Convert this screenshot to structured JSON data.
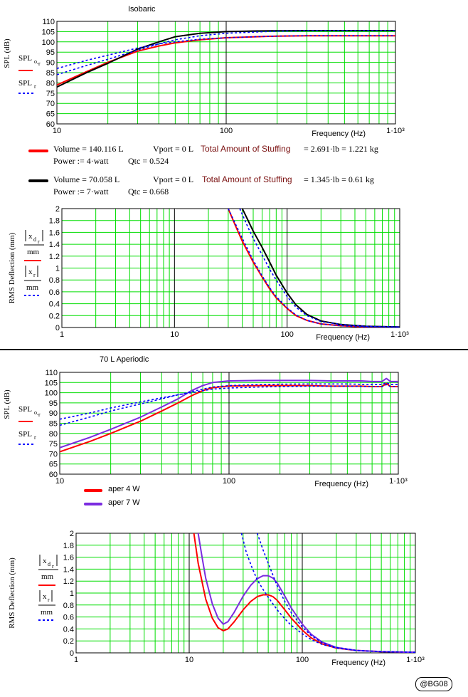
{
  "credit": "@BG08",
  "legend_isobaric": [
    {
      "color": "#ff0000",
      "line1": "Volume = 140.116 L",
      "vport": "Vport = 0 L",
      "stuff_label": "Total Amount of Stuffing",
      "stuff_value": "= 2.691·lb = 1.221 kg",
      "line2": "Power := 4·watt",
      "qtc": "Qtc = 0.524"
    },
    {
      "color": "#000000",
      "line1": "Volume = 70.058 L",
      "vport": "Vport = 0 L",
      "stuff_label": "Total Amount of Stuffing",
      "stuff_value": "= 1.345·lb = 0.61 kg",
      "line2": "Power := 7·watt",
      "qtc": "Qtc = 0.668"
    }
  ],
  "legend_aperiodic": [
    {
      "color": "#ff0000",
      "label": "aper 4 W"
    },
    {
      "color": "#7b2be0",
      "label": "aper 7 W"
    }
  ],
  "chart_data": [
    {
      "type": "line",
      "title": "Isobaric",
      "xlabel": "Frequency (Hz)",
      "ylabel": "SPL (dB)",
      "xscale": "log",
      "xlim": [
        10,
        1000
      ],
      "ylim": [
        60,
        110
      ],
      "yticks": [
        60,
        65,
        70,
        75,
        80,
        85,
        90,
        95,
        100,
        105,
        110
      ],
      "xticks": [
        10,
        100,
        1000
      ],
      "xtick_labels": [
        "10",
        "100",
        "1·10³"
      ],
      "grid": true,
      "legend": {
        "solid": "SPL_o_r",
        "dotted": "SPL_r"
      },
      "series": [
        {
          "color": "#ff0000",
          "style": "solid",
          "x": [
            10,
            15,
            20,
            30,
            40,
            50,
            70,
            100,
            150,
            200,
            300,
            500,
            700,
            1000
          ],
          "y": [
            79,
            85.5,
            90,
            95.5,
            98,
            99.5,
            101,
            102,
            102.5,
            102.8,
            103,
            103,
            103,
            103
          ]
        },
        {
          "color": "#000000",
          "style": "solid",
          "x": [
            10,
            15,
            20,
            30,
            40,
            50,
            70,
            100,
            150,
            200,
            300,
            500,
            700,
            1000
          ],
          "y": [
            78,
            85,
            89.5,
            96.5,
            100,
            102.5,
            104.2,
            105,
            105.3,
            105.4,
            105.5,
            105.5,
            105.5,
            105.5
          ]
        },
        {
          "color": "#0000ff",
          "style": "dotted",
          "x": [
            10,
            15,
            20,
            30,
            40,
            50,
            70,
            100,
            150,
            200,
            300,
            500,
            700,
            1000
          ],
          "y": [
            87,
            91,
            93.5,
            97,
            99,
            100,
            101.3,
            102,
            102.5,
            102.8,
            103,
            103,
            103,
            103
          ]
        },
        {
          "color": "#0000ff",
          "style": "dotted",
          "x": [
            10,
            15,
            20,
            30,
            40,
            50,
            70,
            100,
            150,
            200,
            300,
            500,
            700,
            1000
          ],
          "y": [
            84,
            88.5,
            91.5,
            96,
            99,
            101,
            103,
            104.2,
            104.8,
            105.2,
            105.4,
            105.5,
            105.5,
            105.5
          ]
        }
      ]
    },
    {
      "type": "line",
      "title": "",
      "xlabel": "Frequency (Hz)",
      "ylabel": "RMS Deflection (mm)",
      "xscale": "log",
      "xlim": [
        1,
        1000
      ],
      "ylim": [
        0,
        2
      ],
      "yticks": [
        0,
        0.2,
        0.4,
        0.6,
        0.8,
        1,
        1.2,
        1.4,
        1.6,
        1.8,
        2
      ],
      "xticks": [
        1,
        10,
        100,
        1000
      ],
      "xtick_labels": [
        "1",
        "10",
        "100",
        "1·10³"
      ],
      "grid": true,
      "legend": {
        "solid": "|x_d_r| / mm",
        "dotted": "|x_r| / mm"
      },
      "series": [
        {
          "color": "#ff0000",
          "style": "solid",
          "x": [
            30,
            35,
            40,
            50,
            60,
            70,
            80,
            100,
            120,
            150,
            200,
            300,
            500,
            1000
          ],
          "y": [
            2,
            1.7,
            1.45,
            1.1,
            0.85,
            0.65,
            0.5,
            0.32,
            0.2,
            0.12,
            0.06,
            0.03,
            0.01,
            0.005
          ]
        },
        {
          "color": "#000000",
          "style": "solid",
          "x": [
            40,
            45,
            50,
            60,
            70,
            80,
            100,
            120,
            150,
            200,
            300,
            500,
            1000
          ],
          "y": [
            2,
            1.8,
            1.62,
            1.35,
            1.1,
            0.88,
            0.58,
            0.38,
            0.22,
            0.11,
            0.05,
            0.02,
            0.01
          ]
        },
        {
          "color": "#0000ff",
          "style": "dotted",
          "x": [
            30,
            35,
            40,
            50,
            60,
            70,
            80,
            100,
            120,
            150,
            200,
            300,
            500,
            1000
          ],
          "y": [
            2,
            1.73,
            1.5,
            1.13,
            0.87,
            0.67,
            0.52,
            0.33,
            0.21,
            0.12,
            0.06,
            0.03,
            0.01,
            0.005
          ]
        },
        {
          "color": "#0000ff",
          "style": "dotted",
          "x": [
            38,
            45,
            50,
            60,
            70,
            80,
            100,
            120,
            150,
            200,
            300,
            500,
            1000
          ],
          "y": [
            2,
            1.68,
            1.5,
            1.22,
            0.98,
            0.8,
            0.52,
            0.34,
            0.2,
            0.1,
            0.05,
            0.02,
            0.01
          ]
        }
      ]
    },
    {
      "type": "line",
      "title": "70 L   Aperiodic",
      "xlabel": "Frequency (Hz)",
      "ylabel": "SPL (dB)",
      "xscale": "log",
      "xlim": [
        10,
        1000
      ],
      "ylim": [
        60,
        110
      ],
      "yticks": [
        60,
        65,
        70,
        75,
        80,
        85,
        90,
        95,
        100,
        105,
        110
      ],
      "xticks": [
        10,
        100,
        1000
      ],
      "xtick_labels": [
        "10",
        "100",
        "1·10³"
      ],
      "grid": true,
      "legend": {
        "solid": "SPL_o_r",
        "dotted": "SPL_r"
      },
      "series": [
        {
          "color": "#ff0000",
          "style": "solid",
          "x": [
            10,
            15,
            20,
            30,
            40,
            50,
            60,
            70,
            80,
            100,
            150,
            200,
            300,
            400,
            500,
            600,
            700,
            800,
            850,
            900,
            1000
          ],
          "y": [
            71,
            76,
            80,
            86,
            91,
            95,
            98.5,
            101,
            102.5,
            103.3,
            103.5,
            103.5,
            103.5,
            103.2,
            103.2,
            103.2,
            103,
            103,
            104.5,
            103,
            103
          ]
        },
        {
          "color": "#7b2be0",
          "style": "solid",
          "x": [
            10,
            15,
            20,
            30,
            40,
            50,
            60,
            70,
            80,
            100,
            150,
            200,
            300,
            400,
            500,
            600,
            700,
            800,
            850,
            900,
            1000
          ],
          "y": [
            73,
            78,
            82,
            88,
            93,
            97,
            101,
            103.5,
            105,
            105.8,
            106,
            106,
            106,
            105.8,
            105.8,
            105.8,
            105.5,
            105.5,
            107,
            105.5,
            105.5
          ]
        },
        {
          "color": "#0000ff",
          "style": "dotted",
          "x": [
            10,
            15,
            20,
            30,
            40,
            50,
            60,
            70,
            80,
            100,
            150,
            200,
            300,
            500,
            700,
            800,
            850,
            900,
            1000
          ],
          "y": [
            87,
            90,
            92.5,
            95.5,
            97.5,
            99,
            100,
            101,
            101.8,
            102.3,
            102.8,
            103,
            103.2,
            103.2,
            103,
            103,
            104,
            103,
            103
          ]
        },
        {
          "color": "#0000ff",
          "style": "dotted",
          "x": [
            10,
            15,
            20,
            30,
            40,
            50,
            60,
            70,
            80,
            100,
            150,
            200,
            300,
            500,
            700,
            800,
            850,
            900,
            1000
          ],
          "y": [
            84,
            88,
            91,
            94.5,
            97,
            99,
            100.5,
            101.8,
            102.8,
            103.5,
            104,
            104.2,
            104.3,
            104.3,
            104,
            104,
            105,
            104,
            104
          ]
        }
      ]
    },
    {
      "type": "line",
      "title": "",
      "xlabel": "Frequency (Hz)",
      "ylabel": "RMS Deflection (mm)",
      "xscale": "log",
      "xlim": [
        1,
        1000
      ],
      "ylim": [
        0,
        2
      ],
      "yticks": [
        0,
        0.2,
        0.4,
        0.6,
        0.8,
        1,
        1.2,
        1.4,
        1.6,
        1.8,
        2
      ],
      "xticks": [
        1,
        10,
        100,
        1000
      ],
      "xtick_labels": [
        "1",
        "10",
        "100",
        "1·10³"
      ],
      "grid": true,
      "legend": {
        "solid": "|x_d_r| / mm",
        "dotted": "|x_r| / mm"
      },
      "series": [
        {
          "color": "#ff0000",
          "style": "solid",
          "x": [
            11,
            12,
            14,
            16,
            18,
            20,
            22,
            25,
            30,
            35,
            40,
            45,
            50,
            55,
            60,
            70,
            80,
            100,
            120,
            150,
            200,
            300,
            500,
            1000
          ],
          "y": [
            2,
            1.5,
            0.9,
            0.58,
            0.42,
            0.37,
            0.4,
            0.52,
            0.72,
            0.86,
            0.94,
            0.97,
            0.97,
            0.94,
            0.88,
            0.72,
            0.58,
            0.38,
            0.25,
            0.15,
            0.08,
            0.04,
            0.02,
            0.01
          ]
        },
        {
          "color": "#7b2be0",
          "style": "solid",
          "x": [
            12,
            13,
            14,
            16,
            18,
            20,
            22,
            25,
            30,
            35,
            40,
            45,
            50,
            55,
            60,
            70,
            80,
            100,
            120,
            150,
            200,
            300,
            500,
            1000
          ],
          "y": [
            2,
            1.6,
            1.25,
            0.82,
            0.58,
            0.48,
            0.52,
            0.68,
            0.95,
            1.13,
            1.24,
            1.29,
            1.29,
            1.25,
            1.17,
            0.95,
            0.75,
            0.48,
            0.31,
            0.18,
            0.09,
            0.04,
            0.02,
            0.01
          ]
        },
        {
          "color": "#0000ff",
          "style": "dotted",
          "x": [
            29,
            32,
            36,
            40,
            45,
            50,
            60,
            70,
            80,
            100,
            120,
            150,
            200,
            300,
            500,
            1000
          ],
          "y": [
            2,
            1.68,
            1.42,
            1.22,
            1.06,
            0.93,
            0.72,
            0.57,
            0.46,
            0.32,
            0.22,
            0.14,
            0.08,
            0.04,
            0.02,
            0.01
          ]
        },
        {
          "color": "#0000ff",
          "style": "dotted",
          "x": [
            40,
            45,
            50,
            55,
            60,
            70,
            80,
            100,
            120,
            150,
            200,
            300,
            500,
            1000
          ],
          "y": [
            2,
            1.72,
            1.5,
            1.3,
            1.12,
            0.86,
            0.67,
            0.43,
            0.29,
            0.17,
            0.09,
            0.04,
            0.02,
            0.01
          ]
        }
      ]
    }
  ]
}
